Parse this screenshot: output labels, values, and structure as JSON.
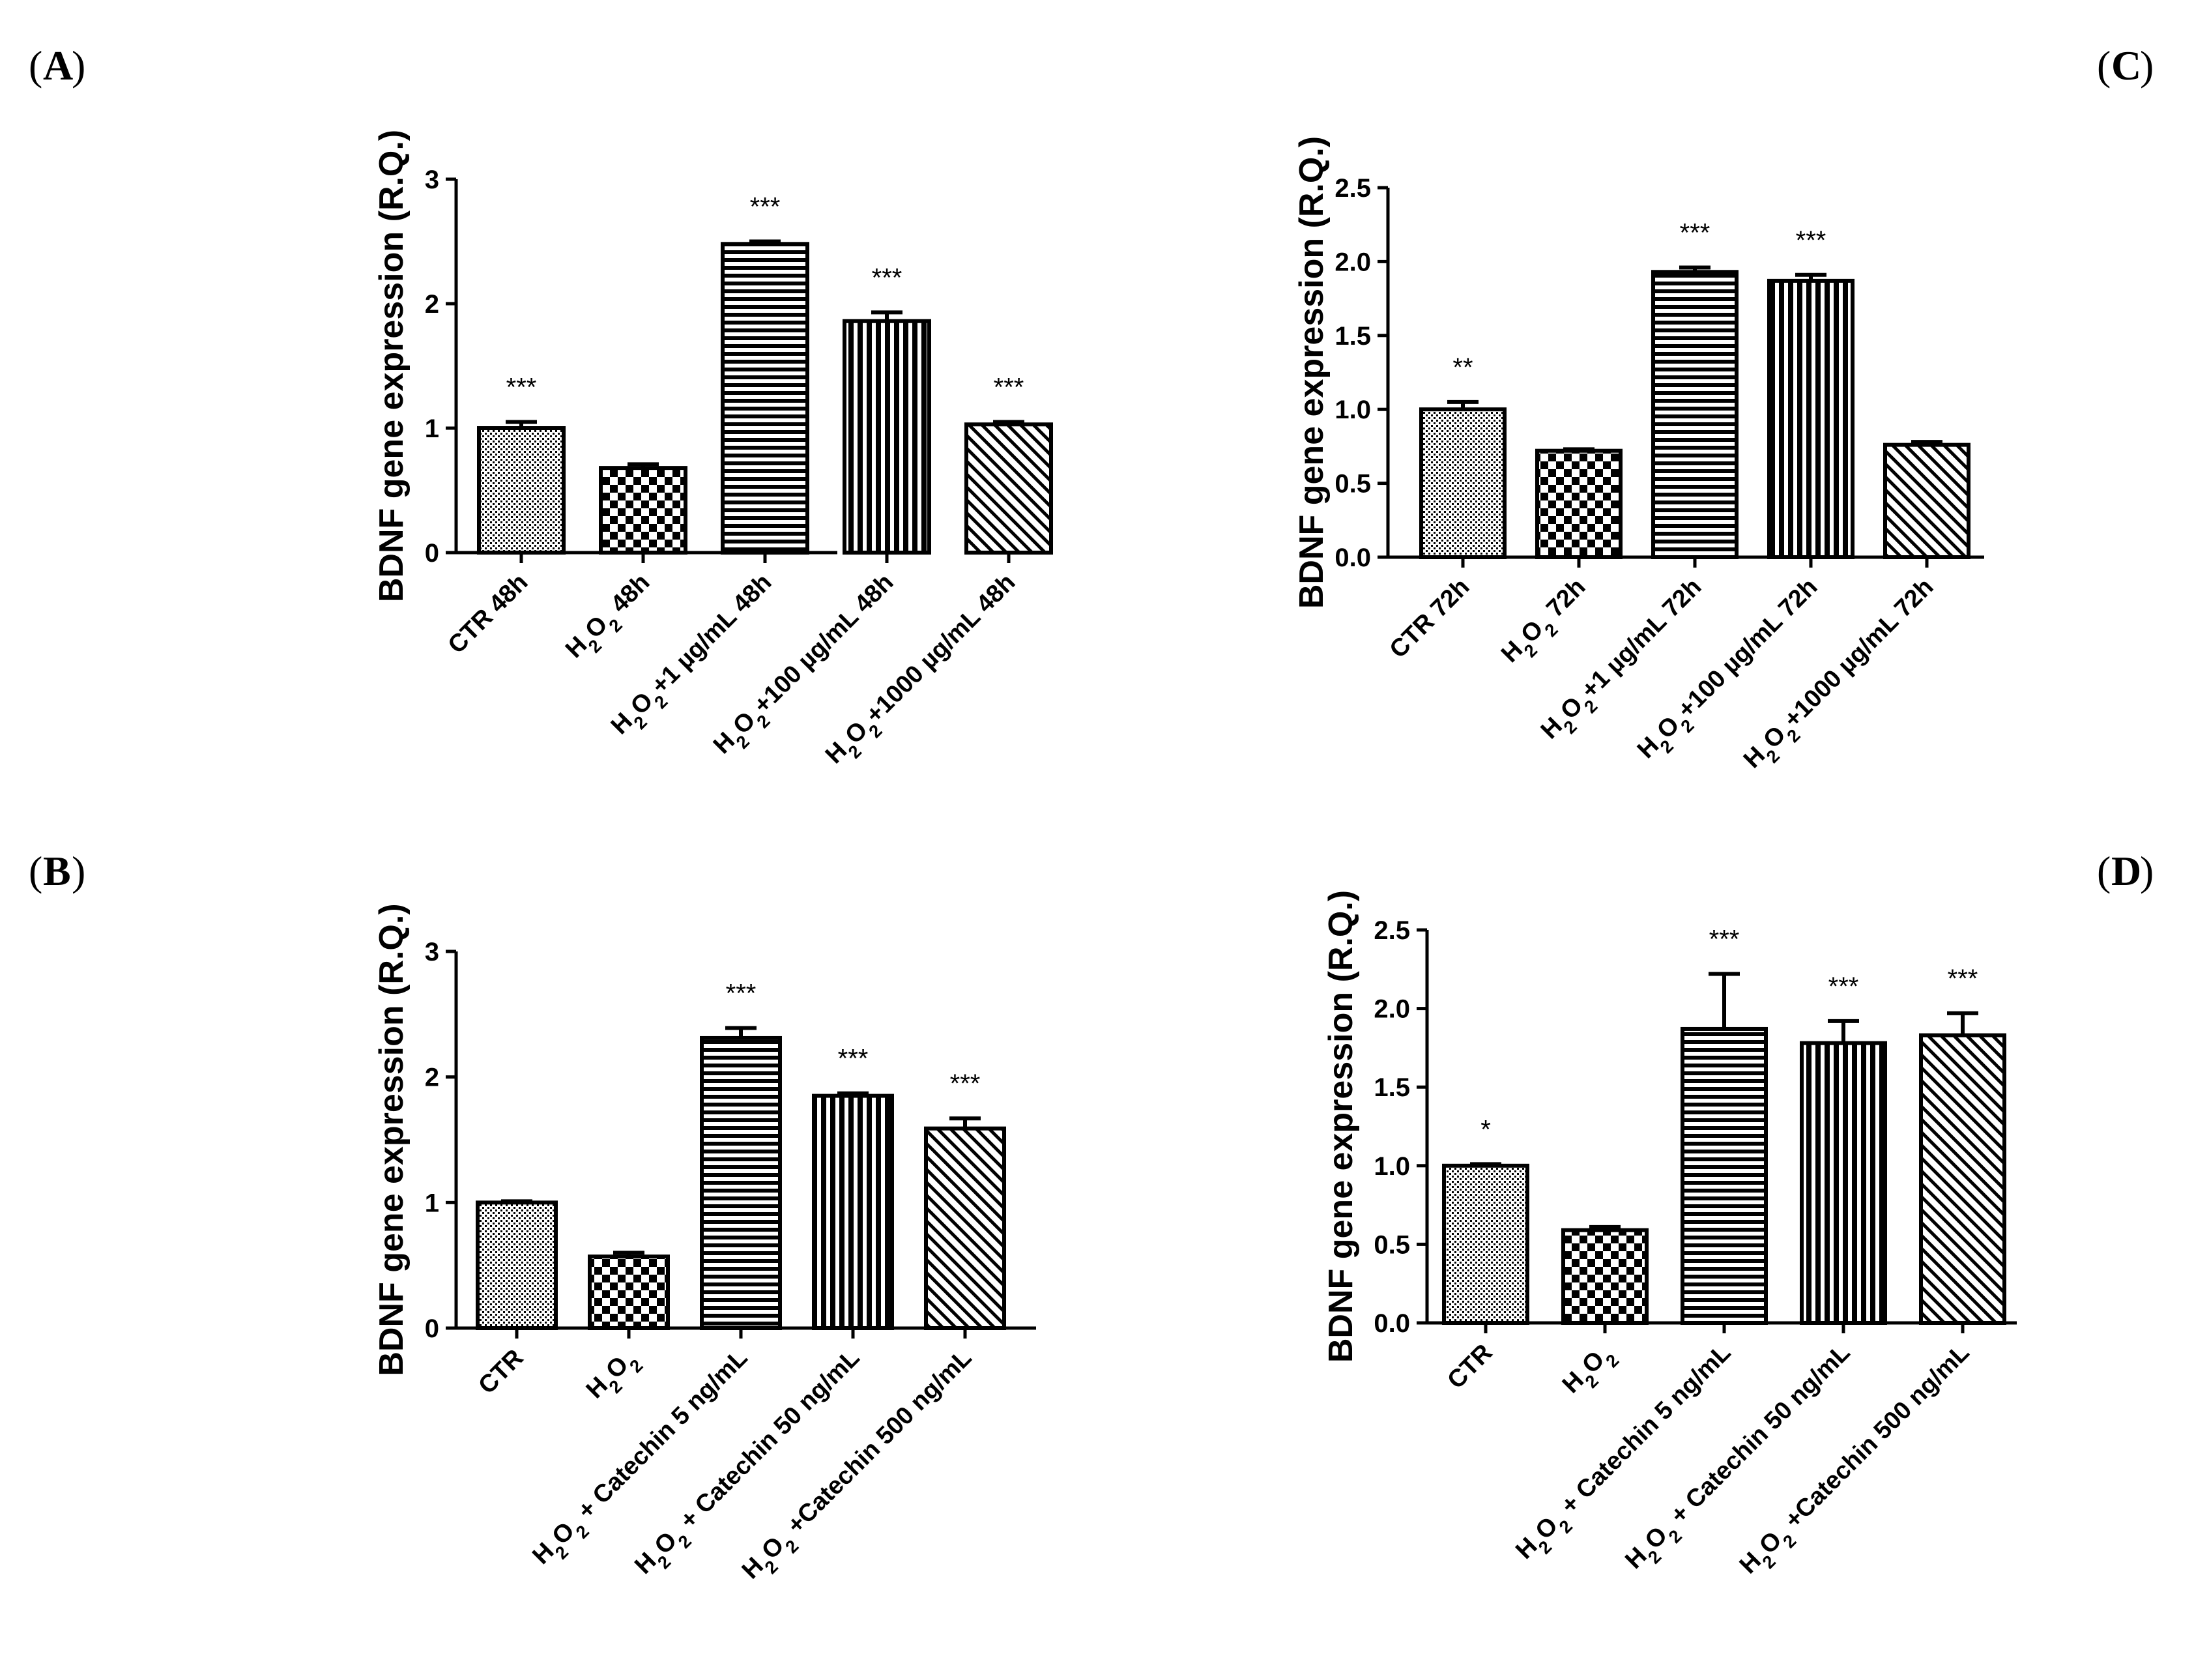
{
  "chart_data": [
    {
      "panel": "A",
      "type": "bar",
      "ylabel": "BDNF gene expression (R.Q.)",
      "ylim": [
        0,
        3
      ],
      "yticks": [
        "0",
        "1",
        "2",
        "3"
      ],
      "categories": [
        "CTR 48h",
        "H2O2 48h",
        "H2O2+1 µg/mL 48h",
        "H2O2+100 µg/mL 48h",
        "H2O2+1000 µg/mL 48h"
      ],
      "values": [
        1.0,
        0.68,
        2.48,
        1.86,
        1.03
      ],
      "errors": [
        0.05,
        0.03,
        0.02,
        0.07,
        0.02
      ],
      "significance": [
        "***",
        "",
        "***",
        "***",
        "***"
      ],
      "patterns": [
        "dots",
        "checker",
        "hlines",
        "vlines",
        "diag"
      ]
    },
    {
      "panel": "C",
      "type": "bar",
      "ylabel": "BDNF gene expression (R.Q.)",
      "ylim": [
        0,
        2.5
      ],
      "yticks": [
        "0.0",
        "0.5",
        "1.0",
        "1.5",
        "2.0",
        "2.5"
      ],
      "categories": [
        "CTR 72h",
        "H2O2 72h",
        "H2O2+1 µg/mL 72h",
        "H2O2+100 µg/mL 72h",
        "H2O2+1000 µg/mL 72h"
      ],
      "values": [
        1.0,
        0.72,
        1.93,
        1.87,
        0.76
      ],
      "errors": [
        0.05,
        0.01,
        0.03,
        0.04,
        0.02
      ],
      "significance": [
        "**",
        "",
        "***",
        "***",
        ""
      ],
      "patterns": [
        "dots",
        "checker",
        "hlines",
        "vlines",
        "diag"
      ]
    },
    {
      "panel": "B",
      "type": "bar",
      "ylabel": "BDNF gene expression (R.Q.)",
      "ylim": [
        0,
        3
      ],
      "yticks": [
        "0",
        "1",
        "2",
        "3"
      ],
      "categories": [
        "CTR",
        "H2O2",
        "H2O2 + Catechin 5 ng/mL",
        "H2O2 + Catechin 50 ng/mL",
        "H2O2 +Catechin 500 ng/mL"
      ],
      "values": [
        1.0,
        0.57,
        2.31,
        1.85,
        1.59
      ],
      "errors": [
        0.01,
        0.03,
        0.08,
        0.02,
        0.08
      ],
      "significance": [
        "",
        "",
        "***",
        "***",
        "***"
      ],
      "patterns": [
        "dots",
        "checker",
        "hlines",
        "vlines",
        "diag"
      ]
    },
    {
      "panel": "D",
      "type": "bar",
      "ylabel": "BDNF gene expression (R.Q.)",
      "ylim": [
        0,
        2.5
      ],
      "yticks": [
        "0.0",
        "0.5",
        "1.0",
        "1.5",
        "2.0",
        "2.5"
      ],
      "categories": [
        "CTR",
        "H2O2",
        "H2O2 + Catechin 5 ng/mL",
        "H2O2 + Catechin 50 ng/mL",
        "H2O2 +Catechin 500 ng/mL"
      ],
      "values": [
        1.0,
        0.59,
        1.87,
        1.78,
        1.83
      ],
      "errors": [
        0.01,
        0.02,
        0.35,
        0.14,
        0.14
      ],
      "significance": [
        "*",
        "",
        "***",
        "***",
        "***"
      ],
      "patterns": [
        "dots",
        "checker",
        "hlines",
        "vlines",
        "diag"
      ]
    }
  ]
}
